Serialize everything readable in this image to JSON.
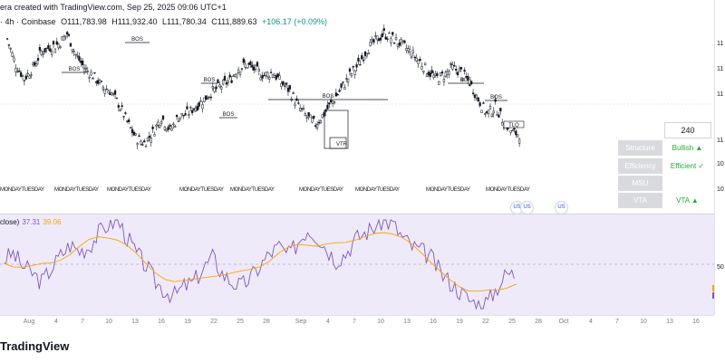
{
  "header": {
    "created_text": "era created with TradingView.com, Sep 25, 2025 09:06 UTC+1",
    "symbol_info": "· 4h · Coinbase",
    "open": "O111,783.98",
    "high": "H111,932.40",
    "low": "L111,780.34",
    "close": "C111,889.63",
    "change": "+106.17 (+0.09%)"
  },
  "price_scale_labels": [
    "11",
    "11",
    "11",
    "11",
    "10",
    "10"
  ],
  "chart_annotations": {
    "bos_label": "BOS",
    "vtr_label": "VTR",
    "tlq_label": "TLQ",
    "day_label_text": "MONDAYTUESDAY"
  },
  "info_panel": {
    "value": "240",
    "rows": [
      {
        "key": "Structure",
        "value": "Bullish ▲"
      },
      {
        "key": "Efficiency",
        "value": "Efficient ✓"
      },
      {
        "key": "MSU",
        "value": ""
      },
      {
        "key": "VTA",
        "value": "VTA ▲"
      }
    ]
  },
  "oscillator": {
    "label": "close)",
    "value1": "37.31",
    "value2": "39.06",
    "scale_label": "50"
  },
  "x_axis_labels": [
    "Aug",
    "4",
    "7",
    "10",
    "13",
    "16",
    "19",
    "22",
    "25",
    "28",
    "Sep",
    "4",
    "7",
    "10",
    "13",
    "16",
    "19",
    "22",
    "25",
    "28",
    "Oct",
    "4",
    "7",
    "10",
    "13",
    "16"
  ],
  "footer": {
    "brand": "TradingView"
  },
  "colors": {
    "candle_up": "#131722",
    "osc_line": "#7e57c2",
    "osc_signal": "#f7a600",
    "osc_bg": "#efeaf9",
    "accent_green": "#22ab39"
  },
  "chart_data": {
    "type": "candlestick",
    "close_series": [
      120,
      95,
      82,
      92,
      108,
      112,
      115,
      125,
      105,
      92,
      85,
      75,
      70,
      58,
      40,
      25,
      20,
      30,
      45,
      32,
      45,
      48,
      55,
      62,
      70,
      75,
      80,
      92,
      95,
      90,
      85,
      88,
      78,
      70,
      55,
      45,
      38,
      48,
      60,
      72,
      85,
      95,
      110,
      118,
      125,
      120,
      115,
      108,
      100,
      90,
      82,
      85,
      92,
      88,
      78,
      62,
      48,
      55,
      40,
      30,
      28
    ],
    "osc_series": [
      55,
      62,
      48,
      40,
      30,
      45,
      60,
      72,
      65,
      70,
      85,
      95,
      100,
      80,
      62,
      48,
      30,
      20,
      15,
      25,
      30,
      45,
      58,
      40,
      30,
      25,
      35,
      48,
      62,
      70,
      60,
      75,
      90,
      82,
      68,
      55,
      62,
      78,
      85,
      92,
      100,
      95,
      80,
      70,
      65,
      58,
      40,
      30,
      20,
      10,
      5,
      8,
      25,
      40,
      38
    ]
  }
}
